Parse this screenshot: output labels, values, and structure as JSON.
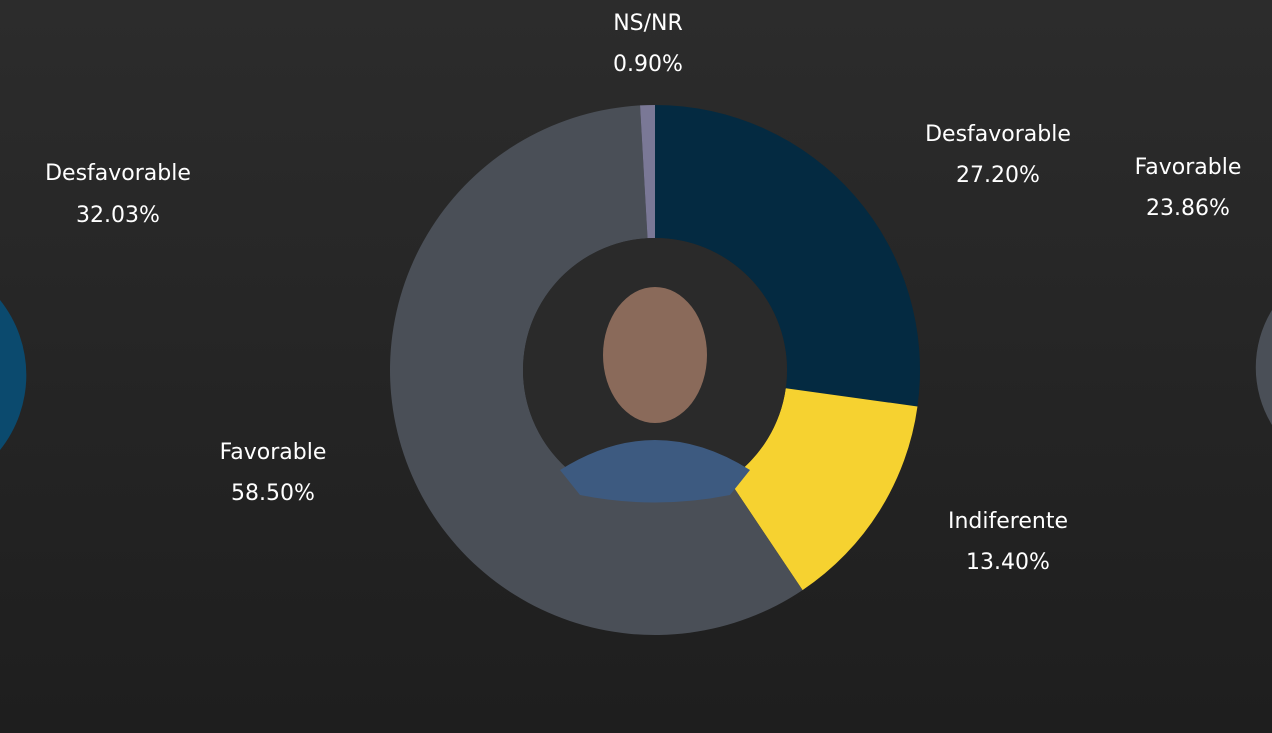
{
  "chart_data": {
    "type": "donut",
    "categories": [
      "Desfavorable",
      "Indiferente",
      "Favorable",
      "NS/NR"
    ],
    "values": [
      27.2,
      13.4,
      58.5,
      0.9
    ],
    "value_labels": [
      "27.20%",
      "13.40%",
      "58.50%",
      "0.90%"
    ],
    "colors": [
      "#042a41",
      "#f6d230",
      "#4a4f57",
      "#7a7896"
    ]
  },
  "side_items": [
    {
      "label": "Desfavorable",
      "value_label": "32.03%"
    },
    {
      "label": "Favorable",
      "value_label": "23.86%"
    }
  ]
}
